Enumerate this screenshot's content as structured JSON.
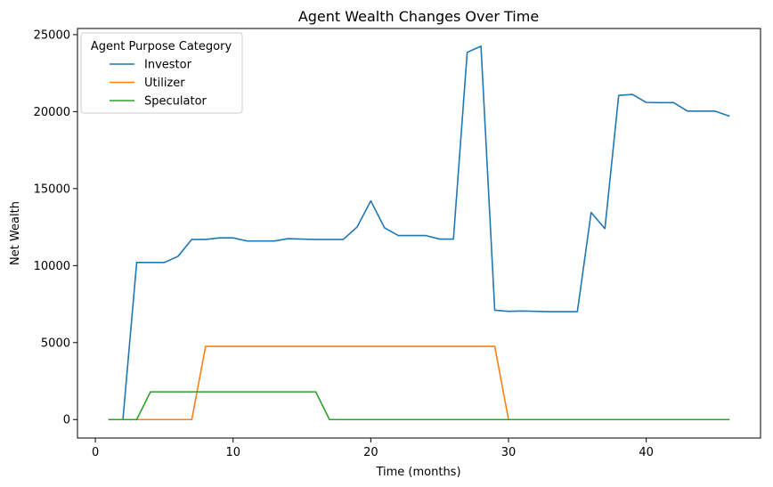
{
  "chart_data": {
    "type": "line",
    "title": "Agent Wealth Changes Over Time",
    "xlabel": "Time (months)",
    "ylabel": "Net Wealth",
    "xlim": [
      -1.3,
      48.3
    ],
    "ylim": [
      -1200,
      25400
    ],
    "xticks": [
      0,
      10,
      20,
      30,
      40
    ],
    "yticks": [
      0,
      5000,
      10000,
      15000,
      20000,
      25000
    ],
    "grid": false,
    "legend": {
      "title": "Agent Purpose Category",
      "position": "top-left"
    },
    "series": [
      {
        "name": "Investor",
        "color": "#1f77b4",
        "points": [
          [
            1,
            0
          ],
          [
            2,
            0
          ],
          [
            3,
            10200
          ],
          [
            4,
            10200
          ],
          [
            5,
            10200
          ],
          [
            6,
            10600
          ],
          [
            7,
            11700
          ],
          [
            8,
            11700
          ],
          [
            9,
            11800
          ],
          [
            10,
            11800
          ],
          [
            11,
            11600
          ],
          [
            12,
            11600
          ],
          [
            13,
            11600
          ],
          [
            14,
            11750
          ],
          [
            15,
            11720
          ],
          [
            16,
            11700
          ],
          [
            17,
            11700
          ],
          [
            18,
            11700
          ],
          [
            19,
            12500
          ],
          [
            20,
            14200
          ],
          [
            21,
            12450
          ],
          [
            22,
            11950
          ],
          [
            23,
            11950
          ],
          [
            24,
            11950
          ],
          [
            25,
            11720
          ],
          [
            26,
            11720
          ],
          [
            27,
            23850
          ],
          [
            28,
            24250
          ],
          [
            29,
            7100
          ],
          [
            30,
            7030
          ],
          [
            31,
            7050
          ],
          [
            32,
            7030
          ],
          [
            33,
            7010
          ],
          [
            34,
            7010
          ],
          [
            35,
            7010
          ],
          [
            36,
            13450
          ],
          [
            37,
            12400
          ],
          [
            38,
            21050
          ],
          [
            39,
            21120
          ],
          [
            40,
            20600
          ],
          [
            41,
            20580
          ],
          [
            42,
            20580
          ],
          [
            43,
            20030
          ],
          [
            44,
            20030
          ],
          [
            45,
            20030
          ],
          [
            46,
            19720
          ]
        ]
      },
      {
        "name": "Utilizer",
        "color": "#ff7f0e",
        "points": [
          [
            1,
            0
          ],
          [
            2,
            0
          ],
          [
            3,
            0
          ],
          [
            4,
            0
          ],
          [
            5,
            0
          ],
          [
            6,
            0
          ],
          [
            7,
            0
          ],
          [
            8,
            4750
          ],
          [
            9,
            4750
          ],
          [
            10,
            4750
          ],
          [
            11,
            4750
          ],
          [
            12,
            4750
          ],
          [
            13,
            4750
          ],
          [
            14,
            4750
          ],
          [
            15,
            4750
          ],
          [
            16,
            4750
          ],
          [
            17,
            4750
          ],
          [
            18,
            4750
          ],
          [
            19,
            4750
          ],
          [
            20,
            4750
          ],
          [
            21,
            4750
          ],
          [
            22,
            4750
          ],
          [
            23,
            4750
          ],
          [
            24,
            4750
          ],
          [
            25,
            4750
          ],
          [
            26,
            4750
          ],
          [
            27,
            4750
          ],
          [
            28,
            4750
          ],
          [
            29,
            4750
          ],
          [
            30,
            0
          ],
          [
            31,
            0
          ],
          [
            32,
            0
          ],
          [
            33,
            0
          ],
          [
            34,
            0
          ],
          [
            35,
            0
          ],
          [
            36,
            0
          ],
          [
            37,
            0
          ],
          [
            38,
            0
          ],
          [
            39,
            0
          ],
          [
            40,
            0
          ],
          [
            41,
            0
          ],
          [
            42,
            0
          ],
          [
            43,
            0
          ],
          [
            44,
            0
          ],
          [
            45,
            0
          ],
          [
            46,
            0
          ]
        ]
      },
      {
        "name": "Speculator",
        "color": "#2ca02c",
        "points": [
          [
            1,
            0
          ],
          [
            2,
            0
          ],
          [
            3,
            0
          ],
          [
            4,
            1800
          ],
          [
            5,
            1800
          ],
          [
            6,
            1800
          ],
          [
            7,
            1800
          ],
          [
            8,
            1800
          ],
          [
            9,
            1800
          ],
          [
            10,
            1800
          ],
          [
            11,
            1800
          ],
          [
            12,
            1800
          ],
          [
            13,
            1800
          ],
          [
            14,
            1800
          ],
          [
            15,
            1800
          ],
          [
            16,
            1800
          ],
          [
            17,
            0
          ],
          [
            18,
            0
          ],
          [
            19,
            0
          ],
          [
            20,
            0
          ],
          [
            21,
            0
          ],
          [
            22,
            0
          ],
          [
            23,
            0
          ],
          [
            24,
            0
          ],
          [
            25,
            0
          ],
          [
            26,
            0
          ],
          [
            27,
            0
          ],
          [
            28,
            0
          ],
          [
            29,
            0
          ],
          [
            30,
            0
          ],
          [
            31,
            0
          ],
          [
            32,
            0
          ],
          [
            33,
            0
          ],
          [
            34,
            0
          ],
          [
            35,
            0
          ],
          [
            36,
            0
          ],
          [
            37,
            0
          ],
          [
            38,
            0
          ],
          [
            39,
            0
          ],
          [
            40,
            0
          ],
          [
            41,
            0
          ],
          [
            42,
            0
          ],
          [
            43,
            0
          ],
          [
            44,
            0
          ],
          [
            45,
            0
          ],
          [
            46,
            0
          ]
        ]
      }
    ]
  }
}
